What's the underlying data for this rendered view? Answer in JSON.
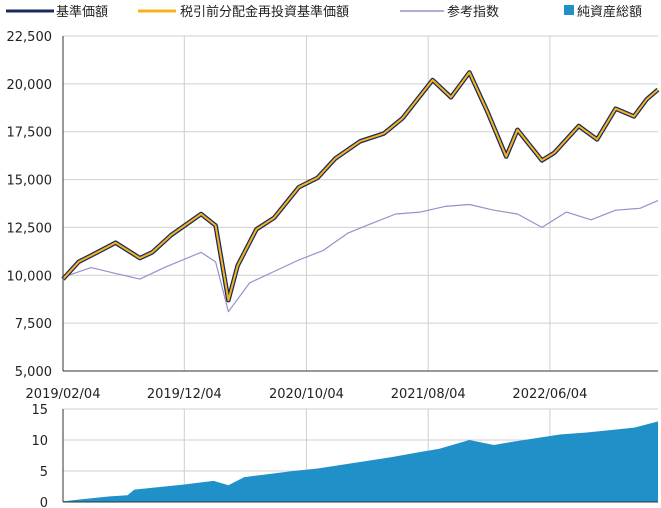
{
  "colors": {
    "nav": "#1b2a5e",
    "nav_reinvested": "#f5b41a",
    "benchmark": "#9b8fc9",
    "aum": "#2090c8",
    "grid": "#cfcfcf",
    "axis": "#333333"
  },
  "chart_data": [
    {
      "type": "line",
      "legend": [
        "基準価額",
        "税引前分配金再投資基準価額",
        "参考指数",
        "純資産総額"
      ],
      "x_tick_labels": [
        "2019/02/04",
        "2019/12/04",
        "2020/10/04",
        "2021/08/04",
        "2022/06/04"
      ],
      "y_tick_labels": [
        "5,000",
        "7,500",
        "10,000",
        "12,500",
        "15,000",
        "17,500",
        "20,000",
        "22,500"
      ],
      "ylim": [
        5000,
        22500
      ],
      "xlim": [
        "2019-02-04",
        "2023-03-01"
      ],
      "grid": true,
      "series": [
        {
          "name": "基準価額",
          "x": [
            "2019-02-04",
            "2019-03-15",
            "2019-05-01",
            "2019-06-15",
            "2019-08-15",
            "2019-09-15",
            "2019-11-01",
            "2020-01-15",
            "2020-02-20",
            "2020-03-23",
            "2020-04-15",
            "2020-06-01",
            "2020-07-15",
            "2020-09-15",
            "2020-11-01",
            "2020-12-15",
            "2021-02-15",
            "2021-04-15",
            "2021-06-01",
            "2021-08-15",
            "2021-09-30",
            "2021-11-15",
            "2021-12-31",
            "2022-02-15",
            "2022-03-15",
            "2022-05-15",
            "2022-06-15",
            "2022-08-15",
            "2022-09-30",
            "2022-11-15",
            "2022-12-31",
            "2023-02-01",
            "2023-03-01"
          ],
          "values": [
            9800,
            10700,
            11200,
            11700,
            10900,
            11200,
            12100,
            13200,
            12600,
            8700,
            10500,
            12400,
            13000,
            14600,
            15100,
            16100,
            17000,
            17400,
            18200,
            20200,
            19300,
            20600,
            18500,
            16200,
            17600,
            16000,
            16400,
            17800,
            17100,
            18700,
            18300,
            19200,
            19700
          ]
        },
        {
          "name": "税引前分配金再投資基準価額",
          "x": [
            "2019-02-04",
            "2019-03-15",
            "2019-05-01",
            "2019-06-15",
            "2019-08-15",
            "2019-09-15",
            "2019-11-01",
            "2020-01-15",
            "2020-02-20",
            "2020-03-23",
            "2020-04-15",
            "2020-06-01",
            "2020-07-15",
            "2020-09-15",
            "2020-11-01",
            "2020-12-15",
            "2021-02-15",
            "2021-04-15",
            "2021-06-01",
            "2021-08-15",
            "2021-09-30",
            "2021-11-15",
            "2021-12-31",
            "2022-02-15",
            "2022-03-15",
            "2022-05-15",
            "2022-06-15",
            "2022-08-15",
            "2022-09-30",
            "2022-11-15",
            "2022-12-31",
            "2023-02-01",
            "2023-03-01"
          ],
          "values": [
            9800,
            10700,
            11200,
            11700,
            10900,
            11200,
            12100,
            13200,
            12600,
            8700,
            10500,
            12400,
            13000,
            14600,
            15100,
            16100,
            17000,
            17400,
            18200,
            20200,
            19300,
            20600,
            18500,
            16200,
            17600,
            16000,
            16400,
            17800,
            17100,
            18700,
            18300,
            19200,
            19700
          ]
        },
        {
          "name": "参考指数",
          "x": [
            "2019-02-04",
            "2019-04-15",
            "2019-06-15",
            "2019-08-15",
            "2019-10-15",
            "2020-01-15",
            "2020-02-20",
            "2020-03-23",
            "2020-05-15",
            "2020-07-15",
            "2020-09-15",
            "2020-11-15",
            "2021-01-15",
            "2021-03-15",
            "2021-05-15",
            "2021-07-15",
            "2021-09-15",
            "2021-11-15",
            "2022-01-15",
            "2022-03-15",
            "2022-05-15",
            "2022-07-15",
            "2022-09-15",
            "2022-11-15",
            "2023-01-15",
            "2023-03-01"
          ],
          "values": [
            9900,
            10400,
            10100,
            9800,
            10400,
            11200,
            10700,
            8100,
            9600,
            10200,
            10800,
            11300,
            12200,
            12700,
            13200,
            13300,
            13600,
            13700,
            13400,
            13200,
            12500,
            13300,
            12900,
            13400,
            13500,
            13900
          ]
        }
      ]
    },
    {
      "type": "area",
      "y_tick_labels": [
        "0",
        "5",
        "10",
        "15"
      ],
      "ylim": [
        0,
        15
      ],
      "grid": true,
      "series": [
        {
          "name": "純資産総額",
          "x": [
            "2019-02-04",
            "2019-04-01",
            "2019-06-01",
            "2019-07-15",
            "2019-08-01",
            "2019-10-01",
            "2019-12-01",
            "2020-02-15",
            "2020-03-23",
            "2020-05-01",
            "2020-07-01",
            "2020-09-01",
            "2020-11-01",
            "2021-01-01",
            "2021-03-01",
            "2021-05-01",
            "2021-07-01",
            "2021-09-01",
            "2021-11-15",
            "2022-01-15",
            "2022-03-01",
            "2022-05-01",
            "2022-07-01",
            "2022-09-01",
            "2022-11-01",
            "2023-01-01",
            "2023-03-01"
          ],
          "values": [
            0.1,
            0.5,
            0.9,
            1.1,
            2.0,
            2.4,
            2.8,
            3.4,
            2.7,
            4.0,
            4.5,
            5.0,
            5.4,
            6.0,
            6.6,
            7.2,
            7.9,
            8.6,
            10.0,
            9.2,
            9.7,
            10.3,
            10.9,
            11.2,
            11.6,
            12.0,
            13.0
          ]
        }
      ]
    }
  ]
}
